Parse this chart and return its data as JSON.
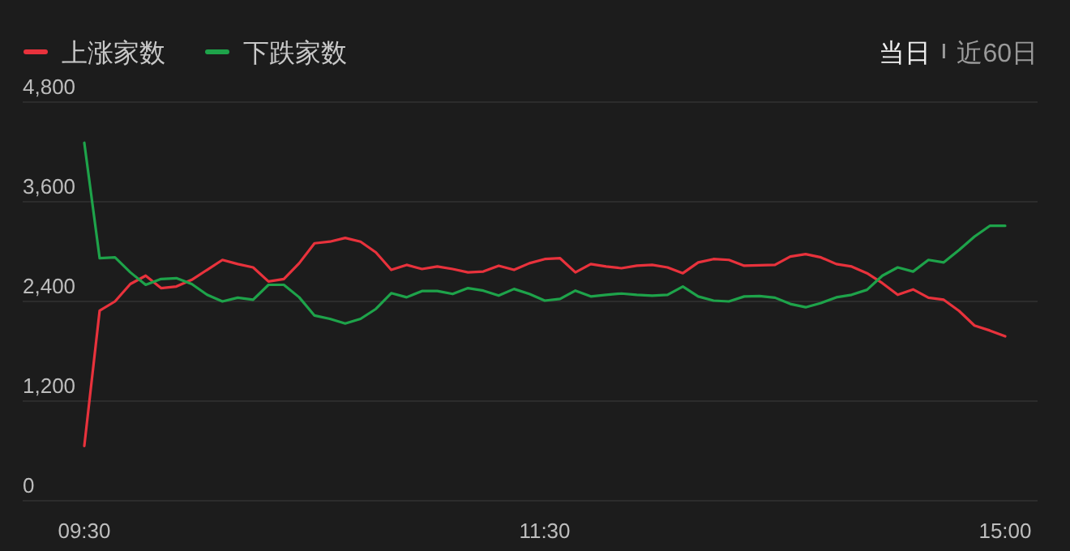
{
  "chart_data": {
    "type": "line",
    "legend": "top left",
    "annotations": [
      "当日",
      "近60日"
    ],
    "categories": [
      "09:30",
      null,
      null,
      null,
      null,
      null,
      null,
      null,
      null,
      null,
      null,
      null,
      null,
      null,
      null,
      null,
      null,
      null,
      null,
      null,
      null,
      null,
      null,
      null,
      null,
      null,
      null,
      null,
      null,
      null,
      "11:30",
      null,
      null,
      null,
      null,
      null,
      null,
      null,
      null,
      null,
      null,
      null,
      null,
      null,
      null,
      null,
      null,
      null,
      null,
      null,
      null,
      null,
      null,
      null,
      null,
      null,
      null,
      null,
      null,
      null,
      "15:00"
    ],
    "ylim": [
      0,
      4800
    ],
    "yticks": [
      0,
      {
        "value": 1200,
        "label": "1,200"
      },
      {
        "value": 2400,
        "label": "2,400"
      },
      {
        "value": 3600,
        "label": "3,600"
      },
      {
        "value": 4800,
        "label": "4,800"
      }
    ],
    "grid": "y",
    "marker": "none",
    "line_style": "solid",
    "series": [
      {
        "name": "上涨家数",
        "color": "#e8323c",
        "values": [
          660,
          2290,
          2400,
          2610,
          2710,
          2560,
          2580,
          2660,
          2780,
          2900,
          2850,
          2810,
          2640,
          2670,
          2860,
          3100,
          3120,
          3165,
          3120,
          2990,
          2780,
          2840,
          2790,
          2820,
          2790,
          2750,
          2760,
          2830,
          2780,
          2860,
          2910,
          2920,
          2750,
          2850,
          2820,
          2800,
          2830,
          2840,
          2810,
          2740,
          2870,
          2910,
          2900,
          2830,
          2835,
          2840,
          2940,
          2970,
          2930,
          2850,
          2820,
          2740,
          2620,
          2480,
          2545,
          2445,
          2420,
          2285,
          2110,
          2050,
          1980
        ]
      },
      {
        "name": "下跌家数",
        "color": "#1ea34a",
        "values": [
          4310,
          2920,
          2930,
          2750,
          2600,
          2670,
          2680,
          2610,
          2480,
          2400,
          2445,
          2420,
          2600,
          2600,
          2450,
          2230,
          2190,
          2135,
          2190,
          2310,
          2500,
          2450,
          2525,
          2525,
          2490,
          2560,
          2530,
          2470,
          2550,
          2490,
          2410,
          2430,
          2530,
          2460,
          2480,
          2495,
          2480,
          2470,
          2480,
          2580,
          2460,
          2410,
          2400,
          2460,
          2465,
          2445,
          2370,
          2330,
          2380,
          2450,
          2480,
          2540,
          2710,
          2810,
          2760,
          2900,
          2870,
          3020,
          3180,
          3310,
          3310
        ]
      }
    ]
  }
}
